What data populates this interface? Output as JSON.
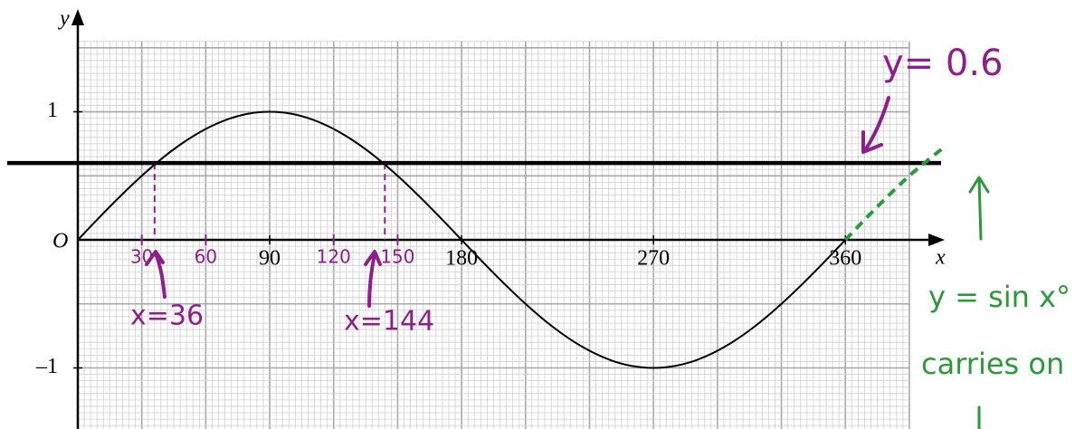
{
  "chart_data": {
    "type": "line",
    "xlabel": "x",
    "ylabel": "y",
    "origin_label": "O",
    "xlim": [
      -36.5,
      467.7
    ],
    "ylim": [
      -1.477,
      1.873
    ],
    "xticks": [
      90,
      180,
      270,
      360
    ],
    "yticks": [
      1,
      {
        "value": -1,
        "label": "–1"
      }
    ],
    "handwritten_xticks": [
      30,
      60,
      120,
      150
    ],
    "grid": {
      "x": [
        0,
        390
      ],
      "y": [
        -1.5,
        1.55
      ],
      "minor_x": 3,
      "major_x": 30,
      "minor_y": 0.05,
      "major_y": 0.5
    },
    "series": [
      {
        "color": "#000000",
        "x": [
          0,
          10,
          20,
          30,
          40,
          50,
          60,
          70,
          80,
          90,
          100,
          110,
          120,
          130,
          140,
          150,
          160,
          170,
          180,
          190,
          200,
          210,
          220,
          230,
          240,
          250,
          260,
          270,
          280,
          290,
          300,
          310,
          320,
          330,
          340,
          350,
          360
        ],
        "values": [
          0,
          0.174,
          0.342,
          0.5,
          0.643,
          0.766,
          0.866,
          0.94,
          0.985,
          1,
          0.985,
          0.94,
          0.866,
          0.766,
          0.643,
          0.5,
          0.342,
          0.174,
          0,
          -0.174,
          -0.342,
          -0.5,
          -0.643,
          -0.766,
          -0.866,
          -0.94,
          -0.985,
          -1,
          -0.985,
          -0.94,
          -0.866,
          -0.766,
          -0.643,
          -0.5,
          -0.342,
          -0.174,
          0
        ]
      },
      {
        "color": "#2a9a3a",
        "dashed": true,
        "x": [
          360,
          375,
          390,
          405
        ],
        "values": [
          0,
          0.259,
          0.5,
          0.707
        ]
      }
    ],
    "hline": {
      "value": 0.6,
      "color": "#000000",
      "label": "y= 0.6"
    },
    "solutions": [
      36,
      144
    ],
    "solution_labels": [
      "x=36",
      "x=144"
    ],
    "annotations": [
      "y = sin x°",
      "carries on"
    ]
  }
}
